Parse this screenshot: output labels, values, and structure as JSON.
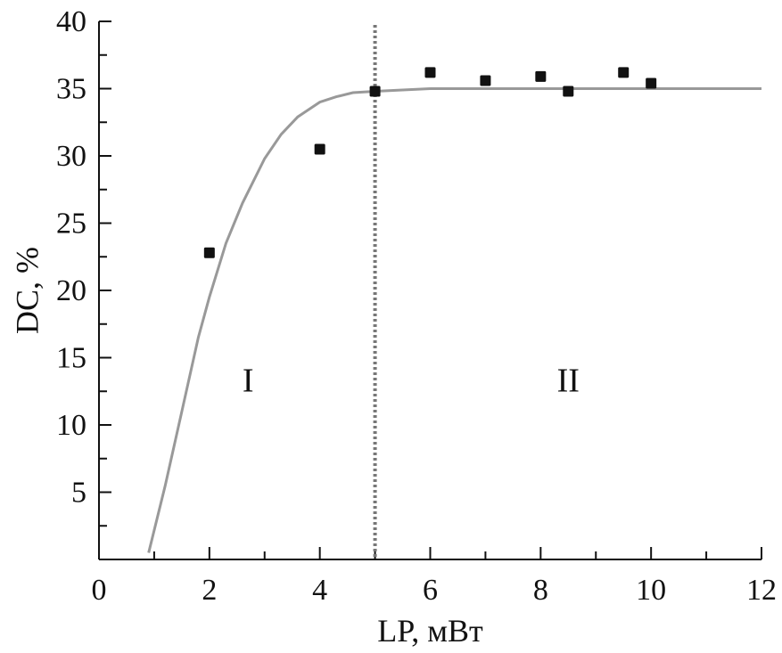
{
  "chart_data": {
    "type": "scatter",
    "xlabel": "LP, мВт",
    "ylabel": "DC, %",
    "xlim": [
      0,
      12
    ],
    "ylim": [
      0,
      40
    ],
    "x_ticks": [
      0,
      2,
      4,
      6,
      8,
      10,
      12
    ],
    "y_ticks": [
      5,
      10,
      15,
      20,
      25,
      30,
      35,
      40
    ],
    "grid": false,
    "series": [
      {
        "type": "scatter",
        "marker": "square",
        "color": "#111111",
        "x": [
          2,
          4,
          5,
          6,
          7,
          8,
          8.5,
          9.5,
          10
        ],
        "y": [
          22.8,
          30.5,
          34.8,
          36.2,
          35.6,
          35.9,
          34.8,
          36.2,
          35.4
        ]
      },
      {
        "type": "line",
        "color": "#999999",
        "x": [
          0.9,
          1.2,
          1.5,
          1.8,
          2.0,
          2.3,
          2.6,
          3.0,
          3.3,
          3.6,
          4.0,
          4.3,
          4.6,
          5.0,
          5.5,
          6.0,
          7.0,
          8.0,
          9.0,
          10.0,
          11.0,
          12.0
        ],
        "y": [
          0.5,
          5.5,
          11.0,
          16.5,
          19.5,
          23.5,
          26.5,
          29.8,
          31.6,
          32.9,
          34.0,
          34.4,
          34.7,
          34.8,
          34.9,
          35.0,
          35.0,
          35.0,
          35.0,
          35.0,
          35.0,
          35.0
        ]
      }
    ],
    "vertical_line": {
      "x": 5,
      "style": "dotted",
      "color": "#777777"
    },
    "regions": [
      {
        "label": "I",
        "x": 2.7,
        "y": 12.5
      },
      {
        "label": "II",
        "x": 8.5,
        "y": 12.5
      }
    ]
  }
}
